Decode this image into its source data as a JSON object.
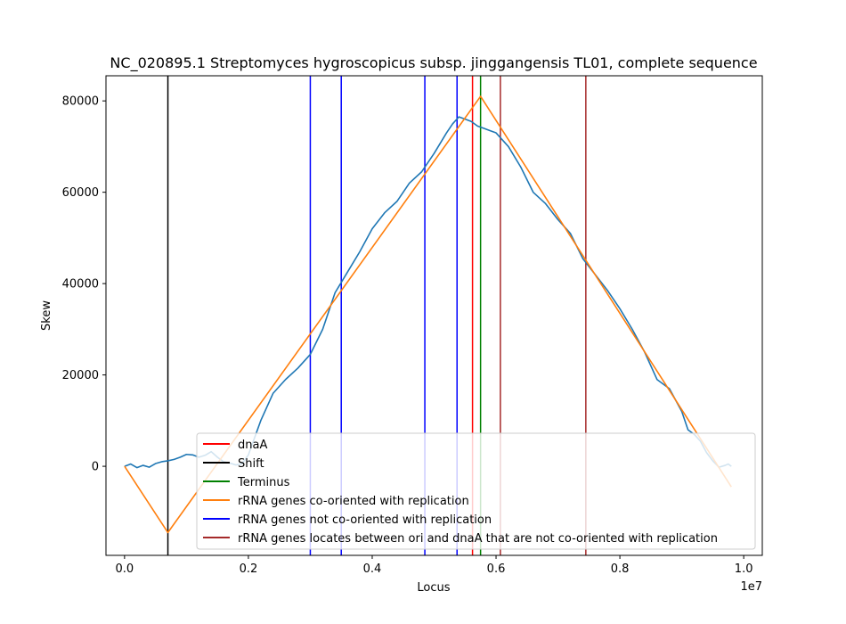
{
  "chart_data": {
    "type": "line",
    "title": "NC_020895.1 Streptomyces hygroscopicus subsp. jinggangensis TL01, complete sequence",
    "xlabel": "Locus",
    "ylabel": "Skew",
    "x_offset_label": "1e7",
    "xlim": [
      -0.03,
      1.03
    ],
    "ylim": [
      -19500,
      85500
    ],
    "x_ticks": [
      0.0,
      0.2,
      0.4,
      0.6,
      0.8,
      1.0
    ],
    "x_tick_labels": [
      "0.0",
      "0.2",
      "0.4",
      "0.6",
      "0.8",
      "1.0"
    ],
    "y_ticks": [
      0,
      20000,
      40000,
      60000,
      80000
    ],
    "y_tick_labels": [
      "0",
      "20000",
      "40000",
      "60000",
      "80000"
    ],
    "legend_position": "lower right",
    "legend": [
      {
        "label": "dnaA",
        "color": "#ff0000"
      },
      {
        "label": "Shift",
        "color": "#000000"
      },
      {
        "label": "Terminus",
        "color": "#008000"
      },
      {
        "label": "rRNA genes co-oriented with replication",
        "color": "#ff7f0e"
      },
      {
        "label": "rRNA genes not co-oriented with replication",
        "color": "#0000ff"
      },
      {
        "label": "rRNA genes locates between ori and dnaA that are not co-oriented with replication",
        "color": "#a52a2a"
      }
    ],
    "series": [
      {
        "name": "skew",
        "color": "#1f77b4",
        "points": [
          [
            0.0,
            0
          ],
          [
            0.01,
            500
          ],
          [
            0.02,
            -300
          ],
          [
            0.03,
            200
          ],
          [
            0.04,
            -200
          ],
          [
            0.05,
            600
          ],
          [
            0.06,
            1000
          ],
          [
            0.07,
            1200
          ],
          [
            0.08,
            1500
          ],
          [
            0.09,
            2000
          ],
          [
            0.1,
            2600
          ],
          [
            0.11,
            2500
          ],
          [
            0.12,
            2000
          ],
          [
            0.13,
            2400
          ],
          [
            0.14,
            3200
          ],
          [
            0.15,
            2000
          ],
          [
            0.16,
            1000
          ],
          [
            0.17,
            700
          ],
          [
            0.18,
            300
          ],
          [
            0.19,
            600
          ],
          [
            0.2,
            2500
          ],
          [
            0.22,
            10000
          ],
          [
            0.24,
            16000
          ],
          [
            0.26,
            19000
          ],
          [
            0.28,
            21500
          ],
          [
            0.3,
            24500
          ],
          [
            0.32,
            30000
          ],
          [
            0.34,
            38000
          ],
          [
            0.36,
            42500
          ],
          [
            0.38,
            47000
          ],
          [
            0.4,
            52000
          ],
          [
            0.42,
            55500
          ],
          [
            0.44,
            58000
          ],
          [
            0.46,
            62000
          ],
          [
            0.48,
            64500
          ],
          [
            0.5,
            68500
          ],
          [
            0.52,
            73000
          ],
          [
            0.53,
            75000
          ],
          [
            0.54,
            76500
          ],
          [
            0.55,
            76000
          ],
          [
            0.56,
            75500
          ],
          [
            0.57,
            74500
          ],
          [
            0.58,
            74000
          ],
          [
            0.59,
            73500
          ],
          [
            0.6,
            73000
          ],
          [
            0.62,
            70000
          ],
          [
            0.64,
            65500
          ],
          [
            0.66,
            60000
          ],
          [
            0.68,
            57500
          ],
          [
            0.7,
            54000
          ],
          [
            0.72,
            51000
          ],
          [
            0.74,
            45500
          ],
          [
            0.76,
            42000
          ],
          [
            0.78,
            38500
          ],
          [
            0.8,
            34500
          ],
          [
            0.82,
            30000
          ],
          [
            0.84,
            25000
          ],
          [
            0.86,
            19000
          ],
          [
            0.88,
            17000
          ],
          [
            0.9,
            12000
          ],
          [
            0.91,
            8000
          ],
          [
            0.92,
            7000
          ],
          [
            0.93,
            5500
          ],
          [
            0.94,
            3000
          ],
          [
            0.95,
            1200
          ],
          [
            0.96,
            -200
          ],
          [
            0.97,
            200
          ],
          [
            0.975,
            500
          ],
          [
            0.98,
            0
          ]
        ]
      },
      {
        "name": "rRNA genes co-oriented with replication",
        "color": "#ff7f0e",
        "points": [
          [
            0.0,
            0
          ],
          [
            0.07,
            -14500
          ],
          [
            0.575,
            81000
          ],
          [
            0.98,
            -4500
          ]
        ]
      }
    ],
    "vertical_lines": [
      {
        "x": 0.07,
        "color": "#000000",
        "series": "Shift"
      },
      {
        "x": 0.3,
        "color": "#0000ff",
        "series": "rRNA genes not co-oriented with replication"
      },
      {
        "x": 0.35,
        "color": "#0000ff",
        "series": "rRNA genes not co-oriented with replication"
      },
      {
        "x": 0.485,
        "color": "#0000ff",
        "series": "rRNA genes not co-oriented with replication"
      },
      {
        "x": 0.537,
        "color": "#0000ff",
        "series": "rRNA genes not co-oriented with replication"
      },
      {
        "x": 0.562,
        "color": "#ff0000",
        "series": "dnaA"
      },
      {
        "x": 0.575,
        "color": "#008000",
        "series": "Terminus"
      },
      {
        "x": 0.607,
        "color": "#a52a2a",
        "series": "rRNA genes locates between ori and dnaA that are not co-oriented with replication"
      },
      {
        "x": 0.745,
        "color": "#a52a2a",
        "series": "rRNA genes locates between ori and dnaA that are not co-oriented with replication"
      }
    ]
  }
}
